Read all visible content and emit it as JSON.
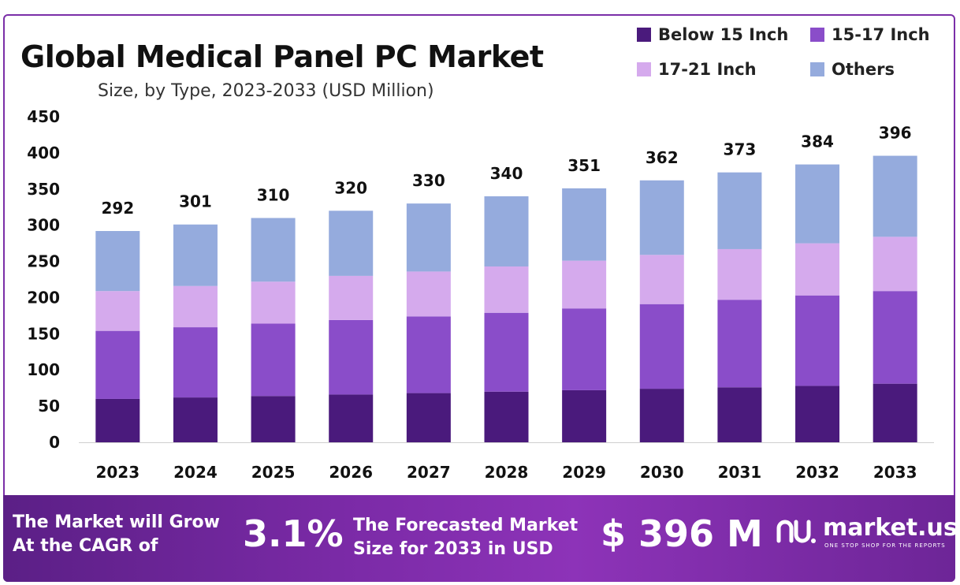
{
  "title": "Global Medical Panel PC Market",
  "subtitle": "Size, by Type, 2023-2033 (USD Million)",
  "colors": {
    "below_15": "#4a1a7c",
    "inch_15_17": "#8a4dc9",
    "inch_17_21": "#d5aaed",
    "others": "#95abdd",
    "banner_start": "#5b1f86",
    "banner_end": "#6d2597"
  },
  "chart_data": {
    "type": "bar",
    "stacked": true,
    "categories": [
      "2023",
      "2024",
      "2025",
      "2026",
      "2027",
      "2028",
      "2029",
      "2030",
      "2031",
      "2032",
      "2033"
    ],
    "series": [
      {
        "name": "Below 15 Inch",
        "color": "#4a1a7c",
        "values": [
          60,
          62,
          64,
          66,
          68,
          70,
          72,
          74,
          76,
          78,
          81
        ]
      },
      {
        "name": "15-17 Inch",
        "color": "#8a4dc9",
        "values": [
          94,
          97,
          100,
          103,
          106,
          109,
          113,
          117,
          121,
          125,
          128
        ]
      },
      {
        "name": "17-21 Inch",
        "color": "#d5aaed",
        "values": [
          55,
          57,
          58,
          61,
          62,
          64,
          66,
          68,
          70,
          72,
          75
        ]
      },
      {
        "name": "Others",
        "color": "#95abdd",
        "values": [
          83,
          85,
          88,
          90,
          94,
          97,
          100,
          103,
          106,
          109,
          112
        ]
      }
    ],
    "totals": [
      "292",
      "301",
      "310",
      "320",
      "330",
      "340",
      "351",
      "362",
      "373",
      "384",
      "396"
    ],
    "yticks": [
      "0",
      "50",
      "100",
      "150",
      "200",
      "250",
      "300",
      "350",
      "400",
      "450"
    ],
    "ylim": [
      0,
      450
    ],
    "grid": false,
    "legend_position": "top-right"
  },
  "banner": {
    "cagr_line1": "The Market will Grow",
    "cagr_line2": "At the CAGR of",
    "cagr_value": "3.1%",
    "forecast_line1": "The Forecasted Market",
    "forecast_line2": "Size for 2033 in USD",
    "forecast_value": "$ 396 M"
  },
  "logo": {
    "name": "market.us",
    "tagline": "ONE STOP SHOP FOR THE REPORTS",
    "icon": "market-us-logo-icon"
  }
}
